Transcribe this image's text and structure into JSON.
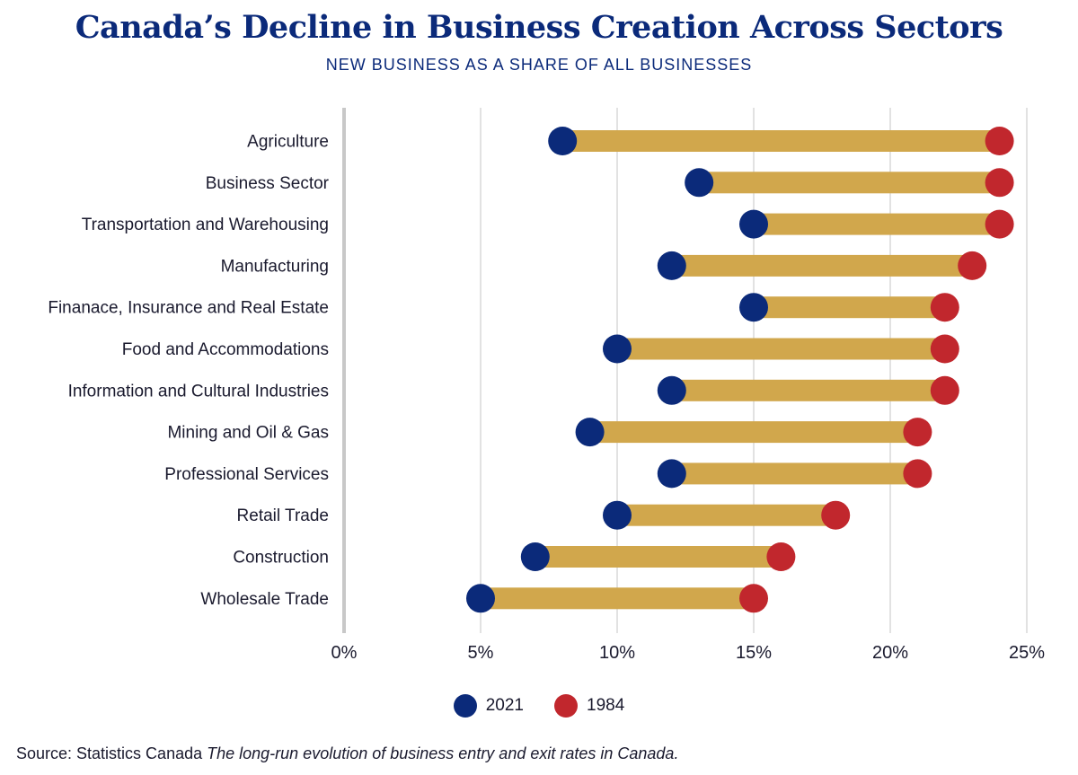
{
  "colors": {
    "title": "#0b2a7a",
    "bar": "#d1a74c",
    "series_2021": "#0b2a7a",
    "series_1984": "#c1272d",
    "grid": "#d9d9d9",
    "axis": "#c8c8c8"
  },
  "legend": {
    "items": [
      {
        "label": "2021",
        "color": "#0b2a7a"
      },
      {
        "label": "1984",
        "color": "#c1272d"
      }
    ]
  },
  "source": {
    "prefix": "Source: Statistics Canada",
    "title": "The long-run evolution of business entry and exit rates in Canada."
  },
  "chart_data": {
    "type": "dumbbell",
    "title": "Canada’s Decline in Business Creation Across Sectors",
    "subtitle": "NEW BUSINESS AS A SHARE OF ALL BUSINESSES",
    "xlabel": "",
    "ylabel": "",
    "xlim": [
      0,
      25
    ],
    "x_ticks": [
      0,
      5,
      10,
      15,
      20,
      25
    ],
    "x_tick_labels": [
      "0%",
      "5%",
      "10%",
      "15%",
      "20%",
      "25%"
    ],
    "grid": true,
    "legend_position": "bottom-center",
    "categories": [
      "Agriculture",
      "Business Sector",
      "Transportation and Warehousing",
      "Manufacturing",
      "Finanace, Insurance and Real Estate",
      "Food and Accommodations",
      "Information and Cultural Industries",
      "Mining and Oil & Gas",
      "Professional Services",
      "Retail Trade",
      "Construction",
      "Wholesale Trade"
    ],
    "series": [
      {
        "name": "2021",
        "values": [
          8,
          13,
          15,
          12,
          15,
          10,
          12,
          9,
          12,
          10,
          7,
          5
        ]
      },
      {
        "name": "1984",
        "values": [
          24,
          24,
          24,
          23,
          22,
          22,
          22,
          21,
          21,
          18,
          16,
          15
        ]
      }
    ]
  }
}
